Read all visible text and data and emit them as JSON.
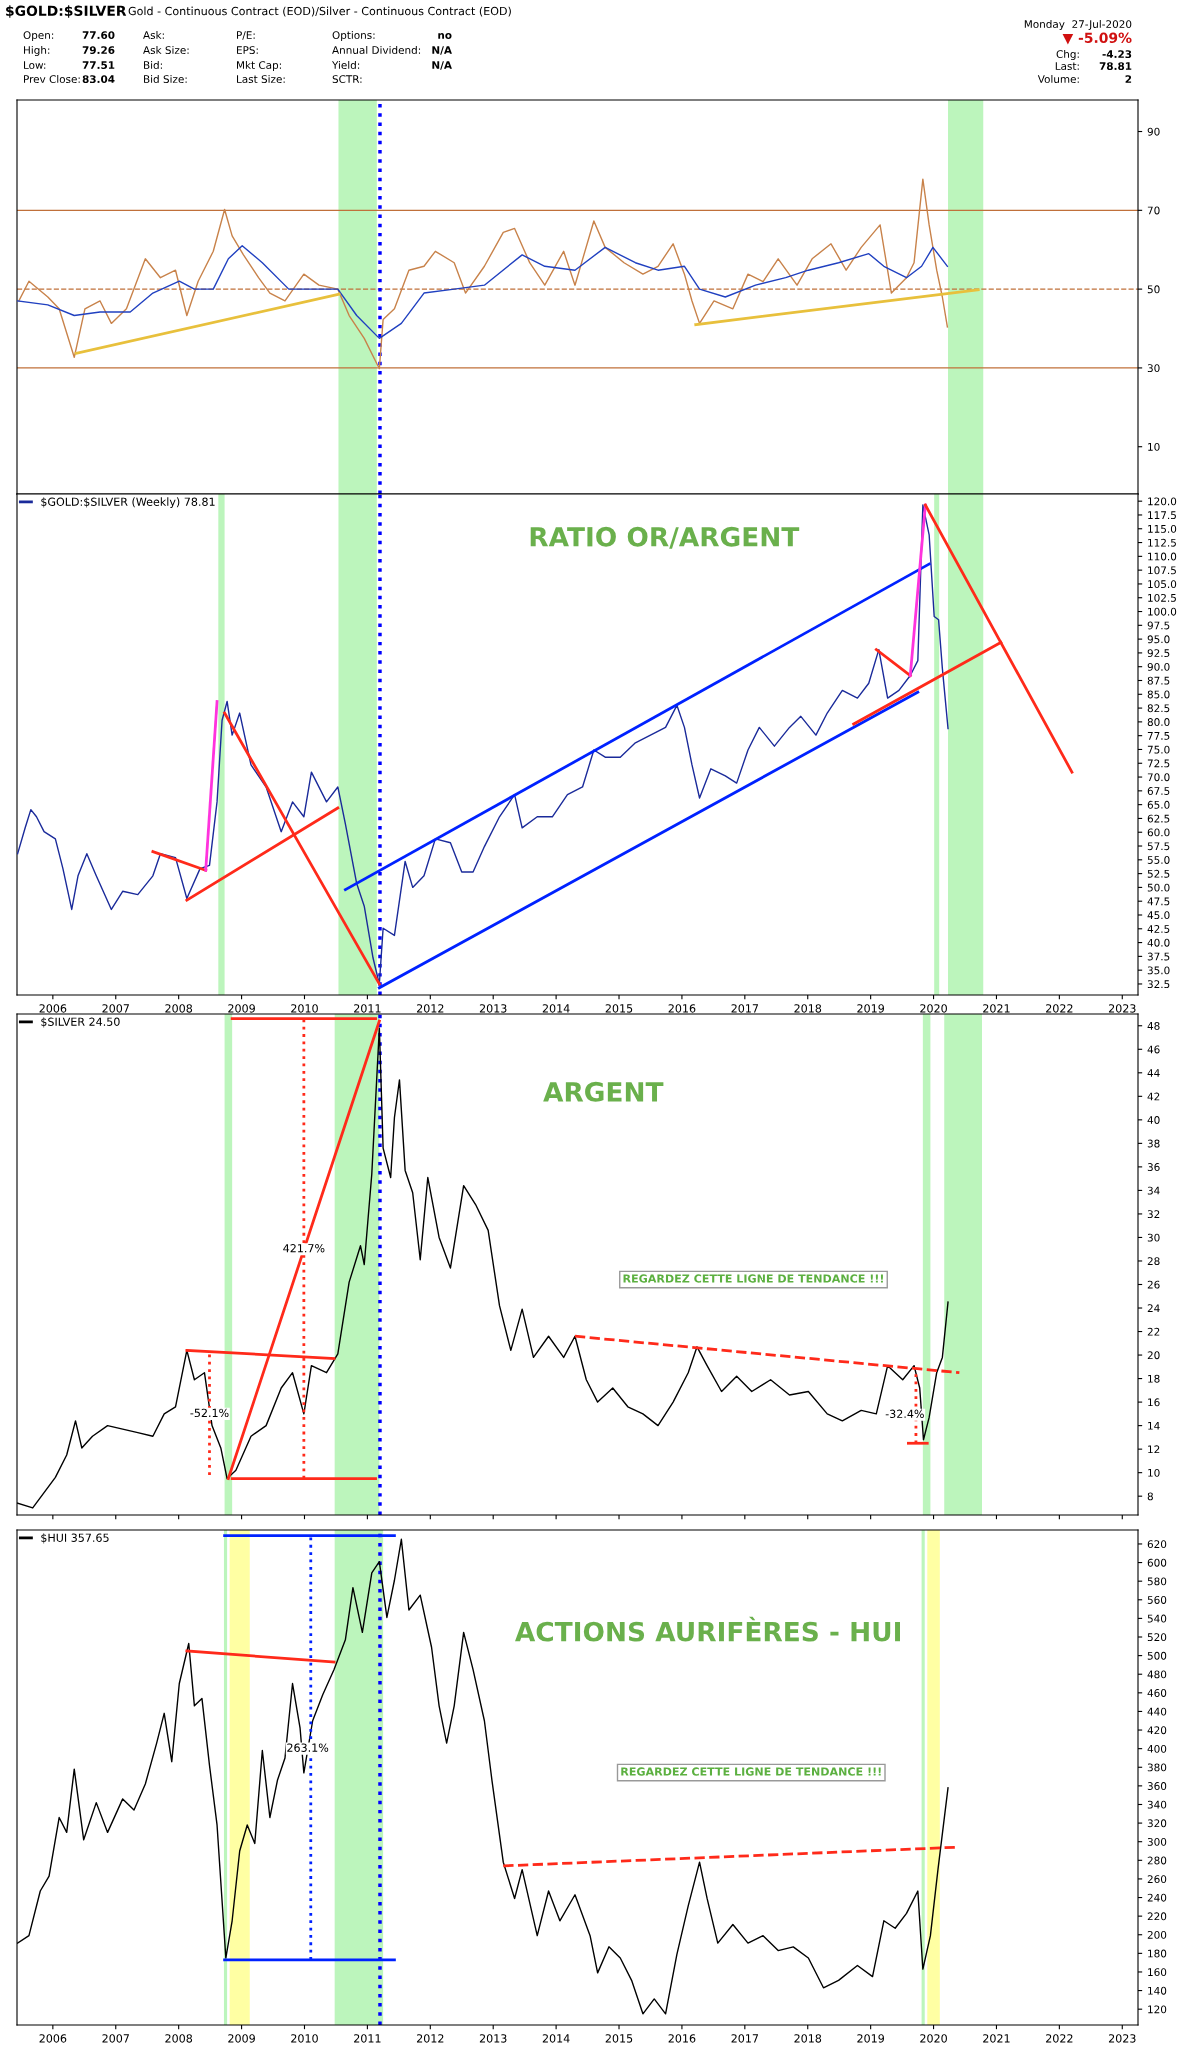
{
  "chart_data": [
    {
      "type": "line",
      "title": "$GOLD:$SILVER",
      "subtitle": "Gold - Continuous Contract (EOD)/Silver - Continuous Contract (EOD)",
      "annotations": [
        "Open:",
        "77.60",
        "Ask:",
        "P/E:",
        "Options:",
        "no",
        "High:",
        "79.26",
        "Ask Size:",
        "EPS:",
        "Annual Dividend:",
        "N/A",
        "Low:",
        "77.51",
        "Bid:",
        "Mkt Cap:",
        "Yield:",
        "N/A",
        "Prev Close:",
        "83.04",
        "Bid Size:",
        "Last Size:",
        "SCTR:",
        "Monday  27-Jul-2020",
        "▼ -5.09%",
        "Chg:",
        "-4.23",
        "Last:",
        "78.81",
        "Volume:",
        "2"
      ],
      "xlim": [
        2005.43,
        2023.25
      ],
      "xticks": [
        2006,
        2007,
        2008,
        2009,
        2010,
        2011,
        2012,
        2013,
        2014,
        2015,
        2016,
        2017,
        2018,
        2019,
        2020,
        2021,
        2022,
        2023
      ],
      "ylim": [
        -2,
        98
      ],
      "yticks": [
        10,
        30,
        50,
        70,
        90
      ],
      "tick_labels": "y",
      "ref_lines": [
        {
          "axis": "y",
          "value": 70,
          "color": "#c0703a",
          "line_style": "solid"
        },
        {
          "axis": "y",
          "value": 30,
          "color": "#c0703a",
          "line_style": "solid"
        },
        {
          "axis": "y",
          "value": 50,
          "color": "#c0703a",
          "line_style": "dashed"
        },
        {
          "axis": "x",
          "value": 2011.2,
          "color": "#0000ff",
          "line_style": "dotted"
        }
      ],
      "bands": [
        {
          "axis": "x",
          "from": 2010.54,
          "to": 2011.15,
          "color": "#90ee90"
        },
        {
          "axis": "x",
          "from": 2020.23,
          "to": 2020.79,
          "color": "#90ee90"
        }
      ],
      "series": [
        {
          "color": "#c8824a",
          "x": [
            2005.46,
            2005.62,
            2005.92,
            2006.1,
            2006.34,
            2006.51,
            2006.75,
            2006.93,
            2007.17,
            2007.47,
            2007.71,
            2007.95,
            2008.13,
            2008.31,
            2008.55,
            2008.73,
            2008.85,
            2009.03,
            2009.27,
            2009.45,
            2009.69,
            2009.99,
            2010.23,
            2010.53,
            2010.71,
            2010.95,
            2011.19,
            2011.25,
            2011.43,
            2011.66,
            2011.9,
            2012.08,
            2012.38,
            2012.56,
            2012.86,
            2013.16,
            2013.34,
            2013.58,
            2013.82,
            2014.12,
            2014.3,
            2014.6,
            2014.78,
            2015.08,
            2015.38,
            2015.62,
            2015.86,
            2016.04,
            2016.16,
            2016.28,
            2016.51,
            2016.81,
            2017.05,
            2017.29,
            2017.53,
            2017.83,
            2018.07,
            2018.37,
            2018.61,
            2018.85,
            2019.15,
            2019.33,
            2019.57,
            2019.69,
            2019.83,
            2019.93,
            2020.05,
            2020.14,
            2020.22
          ],
          "values": [
            47,
            52,
            48,
            45,
            32.7,
            45,
            47,
            41.3,
            45,
            57.7,
            52.9,
            54.8,
            43.3,
            52,
            59.6,
            70.2,
            63.5,
            58.7,
            52.9,
            49,
            47,
            53.8,
            51,
            50,
            43.3,
            37.5,
            29.8,
            42.3,
            45,
            54.8,
            55.8,
            59.6,
            56.7,
            49,
            55.8,
            64.4,
            65.4,
            56.7,
            51,
            59.6,
            51,
            67.3,
            60.6,
            56.7,
            53.8,
            55.8,
            61.5,
            53.8,
            47,
            41.3,
            47,
            45,
            53.8,
            51.9,
            57.7,
            51,
            57.7,
            61.5,
            54.8,
            60.6,
            66.3,
            49,
            52.9,
            56.7,
            77.9,
            66.3,
            54.8,
            48,
            40.4
          ]
        },
        {
          "color": "#2040c0",
          "x": [
            2005.44,
            2005.92,
            2006.34,
            2006.75,
            2007.23,
            2007.59,
            2008.01,
            2008.25,
            2008.55,
            2008.79,
            2009.01,
            2009.33,
            2009.75,
            2010.23,
            2010.53,
            2010.83,
            2011.19,
            2011.54,
            2011.9,
            2012.38,
            2012.86,
            2013.46,
            2013.82,
            2014.3,
            2014.78,
            2015.26,
            2015.62,
            2016.04,
            2016.28,
            2016.69,
            2017.17,
            2017.65,
            2018.01,
            2018.49,
            2018.97,
            2019.21,
            2019.57,
            2019.81,
            2019.99,
            2020.22
          ],
          "values": [
            47,
            46,
            43.3,
            44.2,
            44.2,
            49,
            52,
            50,
            50,
            57.7,
            61,
            56.7,
            50,
            50,
            50,
            43.3,
            37.5,
            41.3,
            49,
            50,
            51,
            58.7,
            55.8,
            54.8,
            60.6,
            56.7,
            54.8,
            55.8,
            50,
            48,
            51,
            52.9,
            54.8,
            56.7,
            59,
            55.8,
            52.9,
            55.8,
            60.6,
            55.8
          ]
        },
        {
          "color": "#e8c03c",
          "x": [
            2006.37,
            2010.55
          ],
          "values": [
            33.7,
            48.7
          ]
        },
        {
          "color": "#e8c03c",
          "x": [
            2016.22,
            2020.71
          ],
          "values": [
            41,
            49.8
          ]
        }
      ]
    },
    {
      "type": "line",
      "title": "RATIO OR/ARGENT",
      "legend": "top left",
      "xlim": [
        2005.43,
        2023.25
      ],
      "xticks": [
        2006,
        2007,
        2008,
        2009,
        2010,
        2011,
        2012,
        2013,
        2014,
        2015,
        2016,
        2017,
        2018,
        2019,
        2020,
        2021,
        2022,
        2023
      ],
      "ylim": [
        30.5,
        121.3
      ],
      "yticks": [
        {
          "value": 32.5,
          "label": "32.5"
        },
        {
          "value": 35,
          "label": "35.0"
        },
        {
          "value": 37.5,
          "label": "37.5"
        },
        {
          "value": 40,
          "label": "40.0"
        },
        {
          "value": 42.5,
          "label": "42.5"
        },
        {
          "value": 45,
          "label": "45.0"
        },
        {
          "value": 47.5,
          "label": "47.5"
        },
        {
          "value": 50,
          "label": "50.0"
        },
        {
          "value": 52.5,
          "label": "52.5"
        },
        {
          "value": 55,
          "label": "55.0"
        },
        {
          "value": 57.5,
          "label": "57.5"
        },
        {
          "value": 60,
          "label": "60.0"
        },
        {
          "value": 62.5,
          "label": "62.5"
        },
        {
          "value": 65,
          "label": "65.0"
        },
        {
          "value": 67.5,
          "label": "67.5"
        },
        {
          "value": 70,
          "label": "70.0"
        },
        {
          "value": 72.5,
          "label": "72.5"
        },
        {
          "value": 75,
          "label": "75.0"
        },
        {
          "value": 77.5,
          "label": "77.5"
        },
        {
          "value": 80,
          "label": "80.0"
        },
        {
          "value": 82.5,
          "label": "82.5"
        },
        {
          "value": 85,
          "label": "85.0"
        },
        {
          "value": 87.5,
          "label": "87.5"
        },
        {
          "value": 90,
          "label": "90.0"
        },
        {
          "value": 92.5,
          "label": "92.5"
        },
        {
          "value": 95,
          "label": "95.0"
        },
        {
          "value": 97.5,
          "label": "97.5"
        },
        {
          "value": 100,
          "label": "100.0"
        },
        {
          "value": 102.5,
          "label": "102.5"
        },
        {
          "value": 105,
          "label": "105.0"
        },
        {
          "value": 107.5,
          "label": "107.5"
        },
        {
          "value": 110,
          "label": "110.0"
        },
        {
          "value": 112.5,
          "label": "112.5"
        },
        {
          "value": 115,
          "label": "115.0"
        },
        {
          "value": 117.5,
          "label": "117.5"
        },
        {
          "value": 120,
          "label": "120.0"
        }
      ],
      "ref_lines": [
        {
          "axis": "x",
          "value": 2011.2,
          "color": "#0000ff",
          "line_style": "dotted"
        }
      ],
      "bands": [
        {
          "axis": "x",
          "from": 2008.63,
          "to": 2008.73,
          "color": "#90ee90"
        },
        {
          "axis": "x",
          "from": 2010.54,
          "to": 2011.15,
          "color": "#90ee90"
        },
        {
          "axis": "x",
          "from": 2020.01,
          "to": 2020.09,
          "color": "#90ee90"
        },
        {
          "axis": "x",
          "from": 2020.23,
          "to": 2020.79,
          "color": "#90ee90"
        }
      ],
      "series": [
        {
          "name": "$GOLD:$SILVER (Weekly) 78.81",
          "color": "#1a2a9a",
          "x": [
            2005.44,
            2005.56,
            2005.65,
            2005.74,
            2005.86,
            2006.04,
            2006.16,
            2006.3,
            2006.4,
            2006.54,
            2006.69,
            2006.93,
            2007.11,
            2007.35,
            2007.59,
            2007.71,
            2007.95,
            2008.13,
            2008.34,
            2008.49,
            2008.61,
            2008.69,
            2008.77,
            2008.85,
            2008.97,
            2009.15,
            2009.39,
            2009.63,
            2009.81,
            2009.99,
            2010.11,
            2010.35,
            2010.53,
            2010.65,
            2010.83,
            2010.95,
            2011.09,
            2011.19,
            2011.25,
            2011.43,
            2011.6,
            2011.72,
            2011.9,
            2012.08,
            2012.32,
            2012.5,
            2012.68,
            2012.86,
            2013.1,
            2013.34,
            2013.46,
            2013.7,
            2013.94,
            2014.18,
            2014.42,
            2014.6,
            2014.78,
            2015.02,
            2015.26,
            2015.5,
            2015.74,
            2015.92,
            2016.04,
            2016.16,
            2016.28,
            2016.46,
            2016.69,
            2016.87,
            2017.05,
            2017.23,
            2017.47,
            2017.71,
            2017.89,
            2018.13,
            2018.31,
            2018.55,
            2018.79,
            2018.97,
            2019.13,
            2019.27,
            2019.45,
            2019.63,
            2019.75,
            2019.83,
            2019.93,
            2020.01,
            2020.08,
            2020.14,
            2020.23
          ],
          "values": [
            56.1,
            60.8,
            64.1,
            62.8,
            60.1,
            58.8,
            53.4,
            46.0,
            52.1,
            56.1,
            52.1,
            46.0,
            49.3,
            48.7,
            52.1,
            56.1,
            55.4,
            48.0,
            53.4,
            54.0,
            65.5,
            80.3,
            83.7,
            77.6,
            81.6,
            72.2,
            68.2,
            60.1,
            65.5,
            62.8,
            70.9,
            65.5,
            68.2,
            61.5,
            50.7,
            46.6,
            37.2,
            32.5,
            42.6,
            41.3,
            54.7,
            50.0,
            52.1,
            58.8,
            58.1,
            52.8,
            52.8,
            57.4,
            62.8,
            66.8,
            60.8,
            62.8,
            62.8,
            66.8,
            68.2,
            74.9,
            73.6,
            73.6,
            76.2,
            77.6,
            79.0,
            83.0,
            79.0,
            72.2,
            66.2,
            71.5,
            70.2,
            68.9,
            74.9,
            79.0,
            75.6,
            79.0,
            81.0,
            77.6,
            81.6,
            85.7,
            84.3,
            87.0,
            93.1,
            84.3,
            85.7,
            88.4,
            91.1,
            119.3,
            113.9,
            99.1,
            98.5,
            89.7,
            78.8
          ]
        },
        {
          "color": "#0022ff",
          "x": [
            2010.65,
            2019.93
          ],
          "values": [
            49.6,
            108.6
          ]
        },
        {
          "color": "#0022ff",
          "x": [
            2011.19,
            2019.75
          ],
          "values": [
            31.8,
            85.4
          ]
        },
        {
          "color": "#ff2a1a",
          "x": [
            2008.13,
            2010.53
          ],
          "values": [
            47.7,
            64.4
          ]
        },
        {
          "color": "#ff2a1a",
          "x": [
            2008.73,
            2011.19
          ],
          "values": [
            81.6,
            32.5
          ]
        },
        {
          "color": "#ff2a1a",
          "x": [
            2007.59,
            2008.43
          ],
          "values": [
            56.5,
            53.1
          ]
        },
        {
          "color": "#ff33dd",
          "x": [
            2008.43,
            2008.61
          ],
          "values": [
            53.1,
            83.7
          ]
        },
        {
          "color": "#ff2a1a",
          "x": [
            2019.09,
            2019.63
          ],
          "values": [
            93.1,
            88.4
          ]
        },
        {
          "color": "#ff33dd",
          "x": [
            2019.63,
            2019.87
          ],
          "values": [
            88.4,
            119.3
          ]
        },
        {
          "color": "#ff2a1a",
          "x": [
            2019.87,
            2022.2
          ],
          "values": [
            119.3,
            70.9
          ]
        },
        {
          "color": "#ff2a1a",
          "x": [
            2018.73,
            2021.07
          ],
          "values": [
            79.6,
            94.4
          ]
        }
      ]
    },
    {
      "type": "line",
      "title": "ARGENT",
      "legend": "top left",
      "tick_labels": "y",
      "annotations": [
        {
          "text": "421.7%",
          "x": 2009.99,
          "y": 29.0
        },
        {
          "text": "-52.1%",
          "x": 2008.49,
          "y": 15.0
        },
        "-32.4%",
        "REGARDEZ CETTE LIGNE DE TENDANCE !!!"
      ],
      "xlim": [
        2005.43,
        2023.25
      ],
      "xticks": [
        2006,
        2007,
        2008,
        2009,
        2010,
        2011,
        2012,
        2013,
        2014,
        2015,
        2016,
        2017,
        2018,
        2019,
        2020,
        2021,
        2022,
        2023
      ],
      "ylim": [
        6.4,
        49
      ],
      "yticks": [
        8,
        10,
        12,
        14,
        16,
        18,
        20,
        22,
        24,
        26,
        28,
        30,
        32,
        34,
        36,
        38,
        40,
        42,
        44,
        46,
        48
      ],
      "ref_lines": [
        {
          "axis": "x",
          "value": 2011.2,
          "color": "#0000ff",
          "line_style": "dotted"
        }
      ],
      "bands": [
        {
          "axis": "x",
          "from": 2008.73,
          "to": 2008.85,
          "color": "#90ee90"
        },
        {
          "axis": "x",
          "from": 2010.48,
          "to": 2011.19,
          "color": "#90ee90"
        },
        {
          "axis": "x",
          "from": 2019.83,
          "to": 2019.95,
          "color": "#90ee90"
        },
        {
          "axis": "x",
          "from": 2020.17,
          "to": 2020.77,
          "color": "#90ee90"
        }
      ],
      "series": [
        {
          "name": "$SILVER 24.50",
          "color": "#000000",
          "x": [
            2005.44,
            2005.68,
            2005.86,
            2006.04,
            2006.22,
            2006.36,
            2006.46,
            2006.63,
            2006.87,
            2007.11,
            2007.35,
            2007.59,
            2007.77,
            2007.95,
            2008.13,
            2008.25,
            2008.41,
            2008.53,
            2008.67,
            2008.77,
            2008.91,
            2009.15,
            2009.39,
            2009.63,
            2009.81,
            2009.99,
            2010.11,
            2010.35,
            2010.53,
            2010.71,
            2010.89,
            2010.95,
            2011.07,
            2011.19,
            2011.25,
            2011.37,
            2011.43,
            2011.51,
            2011.6,
            2011.72,
            2011.84,
            2011.96,
            2012.14,
            2012.32,
            2012.53,
            2012.72,
            2012.92,
            2013.1,
            2013.28,
            2013.46,
            2013.64,
            2013.88,
            2014.12,
            2014.3,
            2014.48,
            2014.66,
            2014.9,
            2015.14,
            2015.38,
            2015.62,
            2015.86,
            2016.1,
            2016.24,
            2016.4,
            2016.63,
            2016.87,
            2017.11,
            2017.41,
            2017.71,
            2018.01,
            2018.31,
            2018.55,
            2018.85,
            2019.09,
            2019.27,
            2019.51,
            2019.69,
            2019.78,
            2019.84,
            2019.93,
            2020.05,
            2020.14,
            2020.23
          ],
          "values": [
            7.4,
            7.0,
            8.3,
            9.6,
            11.5,
            14.4,
            12.1,
            13.1,
            14.0,
            13.7,
            13.4,
            13.1,
            15.0,
            15.6,
            20.4,
            17.9,
            18.5,
            14.0,
            12.1,
            9.5,
            10.2,
            13.1,
            14.0,
            17.2,
            18.5,
            15.0,
            19.1,
            18.5,
            20.1,
            26.2,
            29.3,
            27.7,
            35.4,
            47.8,
            37.6,
            35.1,
            40.2,
            43.4,
            35.7,
            33.8,
            28.1,
            35.1,
            30.0,
            27.4,
            34.4,
            32.8,
            30.6,
            24.2,
            20.4,
            23.9,
            19.8,
            21.6,
            19.8,
            21.6,
            17.9,
            16.0,
            17.2,
            15.6,
            15.0,
            14.0,
            16.0,
            18.5,
            20.7,
            19.1,
            16.9,
            18.2,
            16.9,
            17.9,
            16.6,
            16.9,
            15.0,
            14.4,
            15.3,
            15.0,
            19.1,
            17.9,
            19.1,
            17.2,
            12.8,
            14.7,
            18.5,
            19.8,
            24.5
          ]
        },
        {
          "color": "#ff2a1a",
          "line_style": "dashed",
          "x": [
            2014.3,
            2020.41
          ],
          "values": [
            21.6,
            18.5
          ]
        },
        {
          "color": "#ff2a1a",
          "x": [
            2008.13,
            2010.47
          ],
          "values": [
            20.4,
            19.7
          ]
        },
        {
          "color": "#ff2a1a",
          "x": [
            2008.79,
            2011.19
          ],
          "values": [
            9.5,
            48.4
          ]
        },
        {
          "color": "#ff2a1a",
          "x": [
            2008.85,
            2011.13
          ],
          "values": [
            9.5,
            9.5
          ]
        },
        {
          "color": "#ff2a1a",
          "x": [
            2008.85,
            2011.13
          ],
          "values": [
            48.6,
            48.6
          ]
        },
        {
          "color": "#ff2a1a",
          "line_style": "dotted",
          "x": [
            2009.99,
            2009.99
          ],
          "values": [
            9.5,
            48.6
          ]
        },
        {
          "color": "#ff2a1a",
          "line_style": "dotted",
          "x": [
            2008.49,
            2008.49
          ],
          "values": [
            9.8,
            20.4
          ]
        },
        {
          "color": "#ff2a1a",
          "line_style": "dotted",
          "x": [
            2019.72,
            2019.72
          ],
          "values": [
            12.5,
            18.7
          ]
        },
        {
          "color": "#ff2a1a",
          "x": [
            2019.6,
            2019.9
          ],
          "values": [
            12.5,
            12.5
          ]
        }
      ]
    },
    {
      "type": "line",
      "title": "ACTIONS AURIFÈRES - HUI",
      "legend": "top left",
      "annotations": [
        {
          "text": "263.1%",
          "x": 2010.05,
          "y": 400
        },
        "REGARDEZ CETTE LIGNE DE TENDANCE !!!"
      ],
      "xlim": [
        2005.43,
        2023.25
      ],
      "xticks": [
        2006,
        2007,
        2008,
        2009,
        2010,
        2011,
        2012,
        2013,
        2014,
        2015,
        2016,
        2017,
        2018,
        2019,
        2020,
        2021,
        2022,
        2023
      ],
      "ylim": [
        103,
        635
      ],
      "yticks": [
        120,
        140,
        160,
        180,
        200,
        220,
        240,
        260,
        280,
        300,
        320,
        340,
        360,
        380,
        400,
        420,
        440,
        460,
        480,
        500,
        520,
        540,
        560,
        580,
        600,
        620
      ],
      "ref_lines": [
        {
          "axis": "x",
          "value": 2011.2,
          "color": "#0000ff",
          "line_style": "dotted"
        }
      ],
      "bands": [
        {
          "axis": "x",
          "from": 2008.72,
          "to": 2008.77,
          "color": "#90ee90"
        },
        {
          "axis": "x",
          "from": 2010.48,
          "to": 2011.25,
          "color": "#90ee90"
        },
        {
          "axis": "x",
          "from": 2019.81,
          "to": 2019.86,
          "color": "#90ee90"
        },
        {
          "axis": "x",
          "from": 2008.81,
          "to": 2009.13,
          "color": "#ffff66"
        },
        {
          "axis": "x",
          "from": 2019.9,
          "to": 2020.1,
          "color": "#ffff66"
        }
      ],
      "series": [
        {
          "name": "$HUI 357.65",
          "color": "#000000",
          "x": [
            2005.44,
            2005.62,
            2005.8,
            2005.94,
            2006.1,
            2006.22,
            2006.34,
            2006.49,
            2006.69,
            2006.87,
            2007.11,
            2007.29,
            2007.47,
            2007.65,
            2007.77,
            2007.89,
            2008.01,
            2008.16,
            2008.25,
            2008.37,
            2008.49,
            2008.61,
            2008.75,
            2008.85,
            2008.97,
            2009.09,
            2009.21,
            2009.33,
            2009.45,
            2009.57,
            2009.69,
            2009.81,
            2009.93,
            2009.99,
            2010.13,
            2010.29,
            2010.47,
            2010.65,
            2010.77,
            2010.92,
            2011.07,
            2011.19,
            2011.31,
            2011.43,
            2011.54,
            2011.66,
            2011.84,
            2012.02,
            2012.14,
            2012.26,
            2012.38,
            2012.53,
            2012.68,
            2012.86,
            2012.98,
            2013.16,
            2013.34,
            2013.46,
            2013.7,
            2013.88,
            2014.06,
            2014.3,
            2014.54,
            2014.66,
            2014.84,
            2015.02,
            2015.2,
            2015.38,
            2015.56,
            2015.74,
            2015.92,
            2016.1,
            2016.28,
            2016.4,
            2016.57,
            2016.81,
            2017.05,
            2017.29,
            2017.53,
            2017.77,
            2018.01,
            2018.25,
            2018.49,
            2018.79,
            2019.03,
            2019.21,
            2019.39,
            2019.57,
            2019.75,
            2019.83,
            2019.95,
            2020.07,
            2020.23
          ],
          "values": [
            191,
            199,
            247,
            263,
            326,
            310,
            378,
            302,
            342,
            310,
            346,
            334,
            362,
            406,
            438,
            386,
            470,
            513,
            446,
            454,
            382,
            318,
            175,
            215,
            290,
            318,
            298,
            398,
            326,
            366,
            390,
            470,
            422,
            374,
            430,
            458,
            485,
            517,
            573,
            525,
            589,
            601,
            541,
            581,
            625,
            549,
            565,
            509,
            446,
            406,
            446,
            525,
            485,
            430,
            366,
            278,
            239,
            270,
            199,
            247,
            215,
            243,
            199,
            159,
            187,
            175,
            151,
            115,
            131,
            115,
            179,
            231,
            278,
            239,
            191,
            211,
            191,
            199,
            183,
            187,
            175,
            143,
            151,
            167,
            155,
            215,
            207,
            223,
            247,
            163,
            199,
            270,
            358
          ]
        },
        {
          "color": "#ff2a1a",
          "x": [
            2008.13,
            2010.47
          ],
          "values": [
            505,
            493
          ]
        },
        {
          "color": "#ff2a1a",
          "line_style": "dashed",
          "x": [
            2013.16,
            2020.35
          ],
          "values": [
            274,
            294
          ]
        },
        {
          "color": "#0022ff",
          "x": [
            2008.73,
            2011.43
          ],
          "values": [
            629,
            629
          ]
        },
        {
          "color": "#0022ff",
          "x": [
            2008.73,
            2011.43
          ],
          "values": [
            173,
            173
          ]
        },
        {
          "color": "#0022ff",
          "line_style": "dotted",
          "x": [
            2010.1,
            2010.1
          ],
          "values": [
            173,
            629
          ]
        }
      ]
    }
  ]
}
